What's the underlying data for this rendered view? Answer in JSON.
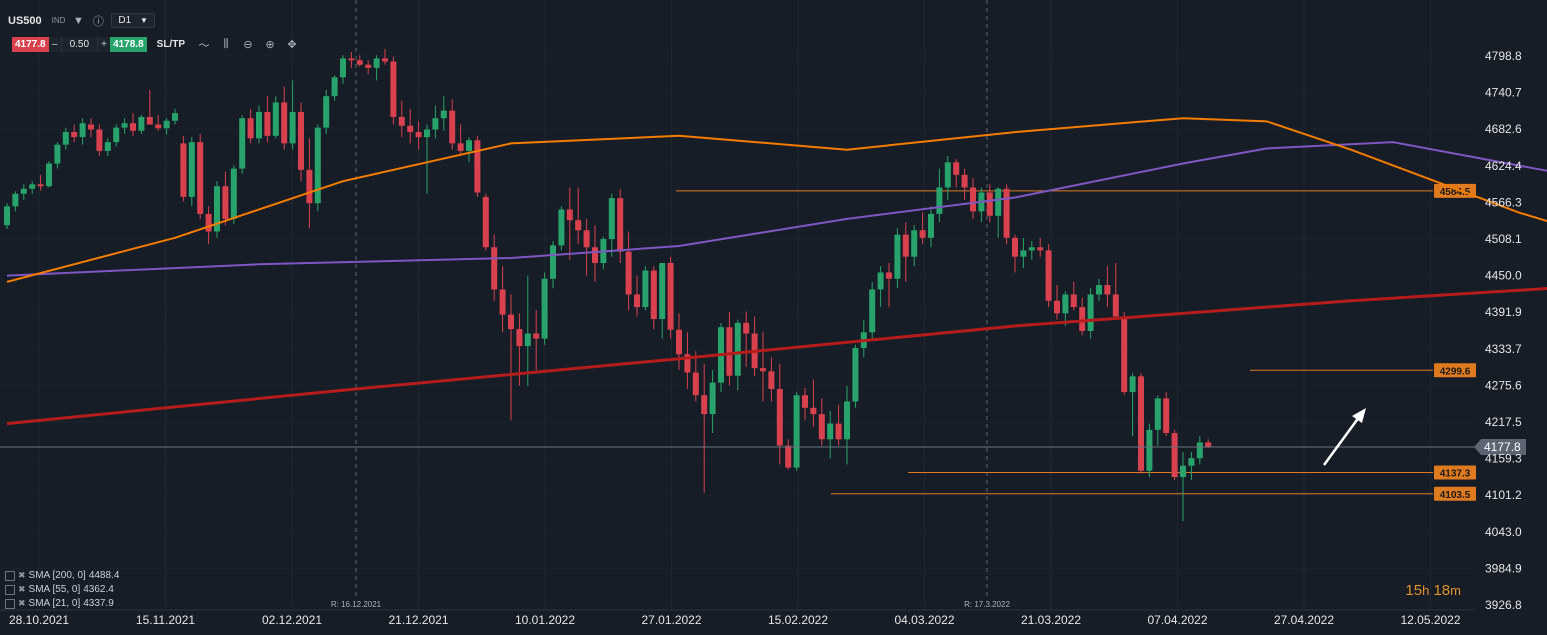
{
  "symbol": "US500",
  "symbol_tag": "IND",
  "timeframe": "D1",
  "trade": {
    "sell_price": "4177.8",
    "minus": "–",
    "quantity": "0.50",
    "plus": "+",
    "buy_price": "4178.8",
    "sltp_label": "SL/TP"
  },
  "icons": [
    "dropdown-arrow-icon",
    "info-icon",
    "timeframe-dropdown-icon",
    "line-tool-icon",
    "indicators-icon",
    "zoom-out-icon",
    "zoom-in-icon",
    "crosshair-icon"
  ],
  "indicators": [
    {
      "label": "SMA [200, 0]",
      "value": "4488.4",
      "color": "#b71c1c"
    },
    {
      "label": "SMA [55, 0]",
      "value": "4362.4",
      "color": "#7e57c2"
    },
    {
      "label": "SMA [21, 0]",
      "value": "4337.9",
      "color": "#f57c00"
    }
  ],
  "timer": {
    "hours": "15",
    "h": "h",
    "minutes": "18",
    "m": "m"
  },
  "chart_data": {
    "type": "candlestick",
    "y_ticks": [
      "4798.8",
      "4740.7",
      "4682.6",
      "4624.4",
      "4566.3",
      "4508.1",
      "4450.0",
      "4391.9",
      "4333.7",
      "4275.6",
      "4217.5",
      "4159.3",
      "4101.2",
      "4043.0",
      "3984.9",
      "3926.8"
    ],
    "x_ticks": [
      "28.10.2021",
      "15.11.2021",
      "02.12.2021",
      "21.12.2021",
      "10.01.2022",
      "27.01.2022",
      "15.02.2022",
      "04.03.2022",
      "21.03.2022",
      "07.04.2022",
      "27.04.2022",
      "12.05.2022"
    ],
    "current_price": "4177.8",
    "level_labels": [
      "4584.5",
      "4299.6",
      "4137.3",
      "4103.5"
    ],
    "rollover_labels": [
      "R: 16.12.2021",
      "R: 17.3.2022"
    ],
    "colors": {
      "up": "#27a36b",
      "down": "#d9414f",
      "level": "#e07a1f",
      "sma200": "#b71c1c",
      "sma55": "#7e57c2",
      "sma21": "#f57c00"
    },
    "candles": [
      [
        4530,
        4565,
        4524,
        4560
      ],
      [
        4560,
        4584,
        4552,
        4580
      ],
      [
        4580,
        4595,
        4570,
        4588
      ],
      [
        4588,
        4600,
        4580,
        4595
      ],
      [
        4595,
        4610,
        4585,
        4592
      ],
      [
        4592,
        4632,
        4590,
        4628
      ],
      [
        4628,
        4662,
        4620,
        4658
      ],
      [
        4658,
        4685,
        4650,
        4678
      ],
      [
        4678,
        4690,
        4662,
        4670
      ],
      [
        4670,
        4700,
        4658,
        4692
      ],
      [
        4690,
        4700,
        4670,
        4682
      ],
      [
        4682,
        4690,
        4640,
        4648
      ],
      [
        4648,
        4668,
        4640,
        4662
      ],
      [
        4662,
        4690,
        4655,
        4685
      ],
      [
        4685,
        4700,
        4675,
        4692
      ],
      [
        4692,
        4708,
        4672,
        4680
      ],
      [
        4680,
        4705,
        4675,
        4702
      ],
      [
        4702,
        4745,
        4690,
        4690
      ],
      [
        4690,
        4705,
        4680,
        4684
      ],
      [
        4684,
        4700,
        4674,
        4696
      ],
      [
        4696,
        4715,
        4690,
        4708
      ],
      [
        4660,
        4672,
        4568,
        4575
      ],
      [
        4575,
        4670,
        4560,
        4662
      ],
      [
        4662,
        4675,
        4540,
        4548
      ],
      [
        4548,
        4560,
        4500,
        4520
      ],
      [
        4520,
        4600,
        4510,
        4592
      ],
      [
        4592,
        4615,
        4530,
        4540
      ],
      [
        4540,
        4625,
        4532,
        4620
      ],
      [
        4620,
        4705,
        4612,
        4700
      ],
      [
        4700,
        4715,
        4660,
        4668
      ],
      [
        4668,
        4720,
        4660,
        4710
      ],
      [
        4710,
        4735,
        4662,
        4672
      ],
      [
        4672,
        4735,
        4668,
        4725
      ],
      [
        4725,
        4750,
        4650,
        4660
      ],
      [
        4660,
        4760,
        4650,
        4710
      ],
      [
        4710,
        4725,
        4600,
        4618
      ],
      [
        4618,
        4668,
        4525,
        4565
      ],
      [
        4565,
        4690,
        4552,
        4685
      ],
      [
        4685,
        4745,
        4675,
        4735
      ],
      [
        4735,
        4768,
        4728,
        4765
      ],
      [
        4765,
        4800,
        4755,
        4795
      ],
      [
        4795,
        4805,
        4780,
        4792
      ],
      [
        4792,
        4800,
        4782,
        4785
      ],
      [
        4785,
        4792,
        4770,
        4780
      ],
      [
        4780,
        4800,
        4760,
        4795
      ],
      [
        4795,
        4810,
        4785,
        4790
      ],
      [
        4790,
        4798,
        4690,
        4702
      ],
      [
        4702,
        4728,
        4670,
        4688
      ],
      [
        4688,
        4715,
        4660,
        4678
      ],
      [
        4678,
        4695,
        4650,
        4670
      ],
      [
        4670,
        4690,
        4580,
        4682
      ],
      [
        4682,
        4720,
        4668,
        4700
      ],
      [
        4700,
        4735,
        4680,
        4712
      ],
      [
        4712,
        4730,
        4650,
        4660
      ],
      [
        4660,
        4690,
        4640,
        4648
      ],
      [
        4648,
        4670,
        4630,
        4665
      ],
      [
        4665,
        4672,
        4575,
        4582
      ],
      [
        4575,
        4580,
        4490,
        4495
      ],
      [
        4495,
        4515,
        4410,
        4428
      ],
      [
        4428,
        4465,
        4360,
        4388
      ],
      [
        4388,
        4420,
        4220,
        4365
      ],
      [
        4365,
        4390,
        4275,
        4338
      ],
      [
        4338,
        4450,
        4275,
        4358
      ],
      [
        4358,
        4395,
        4300,
        4350
      ],
      [
        4350,
        4455,
        4340,
        4445
      ],
      [
        4445,
        4505,
        4430,
        4498
      ],
      [
        4498,
        4560,
        4490,
        4555
      ],
      [
        4555,
        4590,
        4475,
        4538
      ],
      [
        4538,
        4590,
        4500,
        4522
      ],
      [
        4522,
        4540,
        4450,
        4495
      ],
      [
        4495,
        4530,
        4440,
        4470
      ],
      [
        4470,
        4512,
        4460,
        4508
      ],
      [
        4508,
        4580,
        4480,
        4573
      ],
      [
        4573,
        4588,
        4470,
        4488
      ],
      [
        4488,
        4520,
        4395,
        4420
      ],
      [
        4420,
        4450,
        4385,
        4400
      ],
      [
        4400,
        4465,
        4395,
        4458
      ],
      [
        4458,
        4465,
        4365,
        4381
      ],
      [
        4381,
        4470,
        4350,
        4470
      ],
      [
        4470,
        4480,
        4350,
        4364
      ],
      [
        4364,
        4390,
        4300,
        4325
      ],
      [
        4325,
        4360,
        4270,
        4296
      ],
      [
        4296,
        4330,
        4250,
        4260
      ],
      [
        4260,
        4310,
        4105,
        4230
      ],
      [
        4230,
        4300,
        4200,
        4280
      ],
      [
        4280,
        4375,
        4265,
        4368
      ],
      [
        4368,
        4392,
        4275,
        4291
      ],
      [
        4291,
        4380,
        4268,
        4375
      ],
      [
        4375,
        4393,
        4305,
        4358
      ],
      [
        4358,
        4385,
        4290,
        4303
      ],
      [
        4303,
        4360,
        4250,
        4298
      ],
      [
        4298,
        4320,
        4250,
        4270
      ],
      [
        4270,
        4310,
        4150,
        4180
      ],
      [
        4180,
        4190,
        4142,
        4145
      ],
      [
        4145,
        4265,
        4140,
        4260
      ],
      [
        4260,
        4272,
        4220,
        4240
      ],
      [
        4240,
        4285,
        4210,
        4230
      ],
      [
        4230,
        4255,
        4180,
        4190
      ],
      [
        4190,
        4235,
        4160,
        4215
      ],
      [
        4215,
        4245,
        4180,
        4190
      ],
      [
        4190,
        4275,
        4150,
        4250
      ],
      [
        4250,
        4340,
        4240,
        4335
      ],
      [
        4335,
        4380,
        4320,
        4360
      ],
      [
        4360,
        4440,
        4350,
        4428
      ],
      [
        4428,
        4465,
        4400,
        4455
      ],
      [
        4455,
        4470,
        4400,
        4445
      ],
      [
        4445,
        4525,
        4430,
        4515
      ],
      [
        4515,
        4535,
        4440,
        4480
      ],
      [
        4480,
        4530,
        4465,
        4522
      ],
      [
        4522,
        4550,
        4500,
        4510
      ],
      [
        4510,
        4560,
        4495,
        4548
      ],
      [
        4548,
        4620,
        4535,
        4590
      ],
      [
        4590,
        4640,
        4570,
        4630
      ],
      [
        4630,
        4635,
        4590,
        4610
      ],
      [
        4610,
        4620,
        4570,
        4590
      ],
      [
        4590,
        4605,
        4540,
        4552
      ],
      [
        4552,
        4590,
        4535,
        4582
      ],
      [
        4582,
        4595,
        4535,
        4545
      ],
      [
        4545,
        4590,
        4510,
        4588
      ],
      [
        4588,
        4595,
        4500,
        4510
      ],
      [
        4510,
        4515,
        4455,
        4480
      ],
      [
        4480,
        4510,
        4462,
        4490
      ],
      [
        4490,
        4505,
        4475,
        4495
      ],
      [
        4495,
        4510,
        4480,
        4490
      ],
      [
        4490,
        4500,
        4400,
        4410
      ],
      [
        4410,
        4435,
        4380,
        4390
      ],
      [
        4390,
        4425,
        4370,
        4420
      ],
      [
        4420,
        4440,
        4395,
        4400
      ],
      [
        4400,
        4415,
        4355,
        4362
      ],
      [
        4362,
        4430,
        4350,
        4420
      ],
      [
        4420,
        4445,
        4410,
        4435
      ],
      [
        4435,
        4465,
        4400,
        4420
      ],
      [
        4420,
        4470,
        4380,
        4385
      ],
      [
        4385,
        4392,
        4260,
        4265
      ],
      [
        4265,
        4295,
        4195,
        4290
      ],
      [
        4290,
        4295,
        4135,
        4140
      ],
      [
        4140,
        4215,
        4130,
        4205
      ],
      [
        4205,
        4260,
        4180,
        4255
      ],
      [
        4255,
        4265,
        4195,
        4200
      ],
      [
        4200,
        4205,
        4125,
        4130
      ],
      [
        4130,
        4170,
        4060,
        4148
      ],
      [
        4148,
        4170,
        4125,
        4160
      ],
      [
        4160,
        4195,
        4150,
        4185
      ],
      [
        4185,
        4190,
        4176,
        4178
      ]
    ],
    "sma200": [
      [
        0,
        4215
      ],
      [
        40,
        4268
      ],
      [
        80,
        4318
      ],
      [
        120,
        4370
      ],
      [
        160,
        4410
      ],
      [
        190,
        4435
      ],
      [
        215,
        4448
      ],
      [
        260,
        4460
      ],
      [
        300,
        4472
      ],
      [
        330,
        4485
      ],
      [
        360,
        4488
      ],
      [
        380,
        4490
      ],
      [
        394,
        4485
      ]
    ],
    "sma55": [
      [
        0,
        4450
      ],
      [
        30,
        4468
      ],
      [
        60,
        4478
      ],
      [
        80,
        4497
      ],
      [
        100,
        4540
      ],
      [
        120,
        4574
      ],
      [
        140,
        4628
      ],
      [
        150,
        4652
      ],
      [
        165,
        4662
      ],
      [
        190,
        4600
      ],
      [
        210,
        4510
      ],
      [
        230,
        4455
      ],
      [
        250,
        4432
      ],
      [
        270,
        4420
      ],
      [
        290,
        4410
      ],
      [
        320,
        4412
      ],
      [
        340,
        4398
      ],
      [
        360,
        4382
      ],
      [
        380,
        4362
      ]
    ],
    "sma21": [
      [
        0,
        4440
      ],
      [
        20,
        4510
      ],
      [
        40,
        4600
      ],
      [
        60,
        4660
      ],
      [
        80,
        4672
      ],
      [
        100,
        4650
      ],
      [
        120,
        4678
      ],
      [
        140,
        4700
      ],
      [
        150,
        4695
      ],
      [
        160,
        4650
      ],
      [
        180,
        4550
      ],
      [
        200,
        4470
      ],
      [
        220,
        4420
      ],
      [
        245,
        4330
      ],
      [
        265,
        4280
      ],
      [
        300,
        4335
      ],
      [
        320,
        4460
      ],
      [
        340,
        4500
      ],
      [
        360,
        4490
      ],
      [
        380,
        4338
      ]
    ]
  }
}
